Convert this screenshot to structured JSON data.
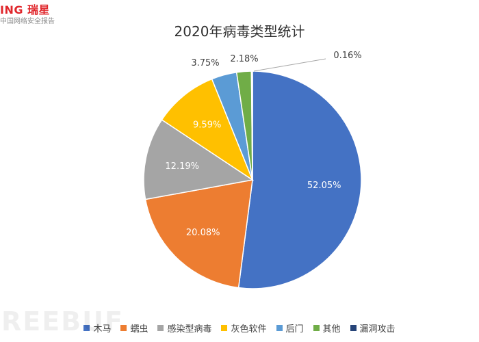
{
  "brand": {
    "logo_text": "ING 瑞星",
    "subtitle": "中国网络安全报告",
    "watermark": "REEBUF"
  },
  "chart_data": {
    "type": "pie",
    "title": "2020年病毒类型统计",
    "categories": [
      "木马",
      "蠕虫",
      "感染型病毒",
      "灰色软件",
      "后门",
      "其他",
      "漏洞攻击"
    ],
    "values": [
      52.05,
      20.08,
      12.19,
      9.59,
      3.75,
      2.18,
      0.16
    ],
    "labels": [
      "52.05%",
      "20.08%",
      "12.19%",
      "9.59%",
      "3.75%",
      "2.18%",
      "0.16%"
    ],
    "colors": [
      "#4472c4",
      "#ed7d31",
      "#a5a5a5",
      "#ffc000",
      "#5b9bd5",
      "#70ad47",
      "#264478"
    ],
    "label_colors": [
      "#ffffff",
      "#ffffff",
      "#ffffff",
      "#ffffff",
      "#404040",
      "#404040",
      "#404040"
    ],
    "legend_position": "bottom"
  }
}
